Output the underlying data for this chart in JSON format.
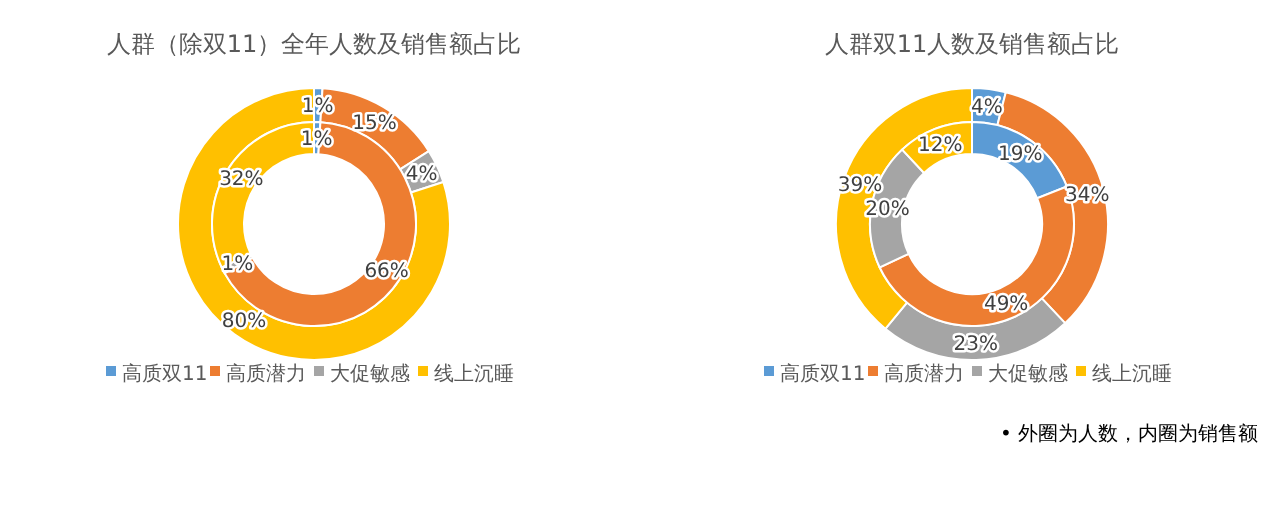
{
  "chart_data": [
    {
      "type": "donut",
      "title": "人群（除双11）全年人数及销售额占比",
      "categories": [
        "高质双11",
        "高质潜力",
        "大促敏感",
        "线上沉睡"
      ],
      "colors": [
        "#5b9bd5",
        "#ed7d31",
        "#a5a5a5",
        "#ffc000"
      ],
      "series": [
        {
          "values": [
            1,
            15,
            4,
            80
          ],
          "value_labels": [
            "1%",
            "15%",
            "4%",
            "80%"
          ]
        },
        {
          "values": [
            1,
            66,
            1,
            32
          ],
          "value_labels": [
            "1%",
            "66%",
            "1%",
            "32%"
          ]
        }
      ],
      "legend": "bottom"
    },
    {
      "type": "donut",
      "title": "人群双11人数及销售额占比",
      "categories": [
        "高质双11",
        "高质潜力",
        "大促敏感",
        "线上沉睡"
      ],
      "colors": [
        "#5b9bd5",
        "#ed7d31",
        "#a5a5a5",
        "#ffc000"
      ],
      "series": [
        {
          "values": [
            4,
            34,
            23,
            39
          ],
          "value_labels": [
            "4%",
            "34%",
            "23%",
            "39%"
          ]
        },
        {
          "values": [
            19,
            49,
            20,
            12
          ],
          "value_labels": [
            "19%",
            "49%",
            "20%",
            "12%"
          ]
        }
      ],
      "legend": "bottom",
      "annotations": [
        "•  外圈为人数，内圈为销售额"
      ]
    }
  ]
}
